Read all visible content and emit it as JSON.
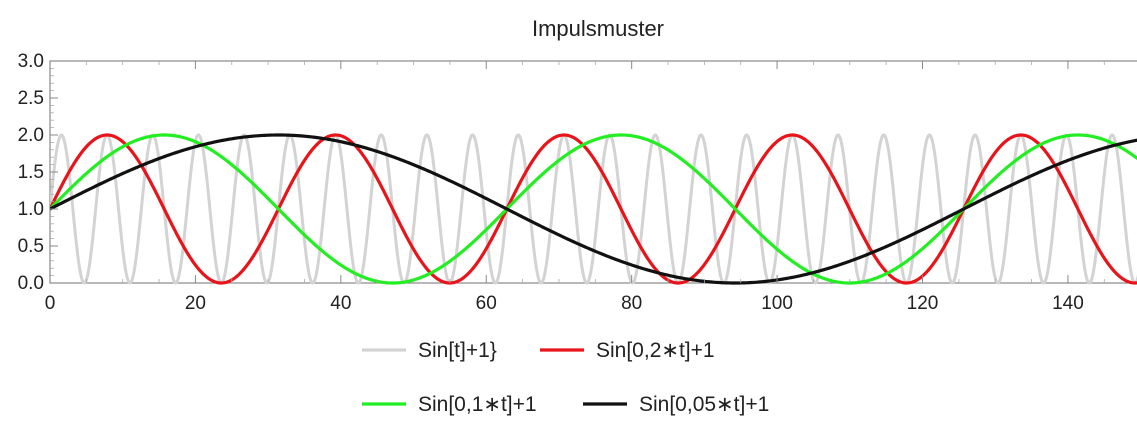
{
  "chart_data": {
    "type": "line",
    "title": "Impulsmuster",
    "xlabel": "",
    "ylabel": "",
    "xlim": [
      0,
      150
    ],
    "ylim": [
      0,
      3
    ],
    "x_ticks": [
      "0",
      "20",
      "40",
      "60",
      "80",
      "100",
      "120",
      "140"
    ],
    "x_tick_values": [
      0,
      20,
      40,
      60,
      80,
      100,
      120,
      140
    ],
    "y_ticks": [
      "0.0",
      "0.5",
      "1.0",
      "1.5",
      "2.0",
      "2.5",
      "3.0"
    ],
    "y_tick_values": [
      0,
      0.5,
      1,
      1.5,
      2,
      2.5,
      3
    ],
    "grid": false,
    "legend_position": "bottom",
    "series": [
      {
        "name": "Sin[t]+1}",
        "formula": "sin(t)+1",
        "freq": 1,
        "color": "#d3d3d3"
      },
      {
        "name": "Sin[0,2∗t]+1",
        "formula": "sin(0.2*t)+1",
        "freq": 0.2,
        "color": "#e8141a"
      },
      {
        "name": "Sin[0,1∗t]+1",
        "formula": "sin(0.1*t)+1",
        "freq": 0.1,
        "color": "#22ee22"
      },
      {
        "name": "Sin[0,05∗t]+1",
        "formula": "sin(0.05*t)+1",
        "freq": 0.05,
        "color": "#111111"
      }
    ],
    "x_range": [
      0,
      150
    ]
  }
}
